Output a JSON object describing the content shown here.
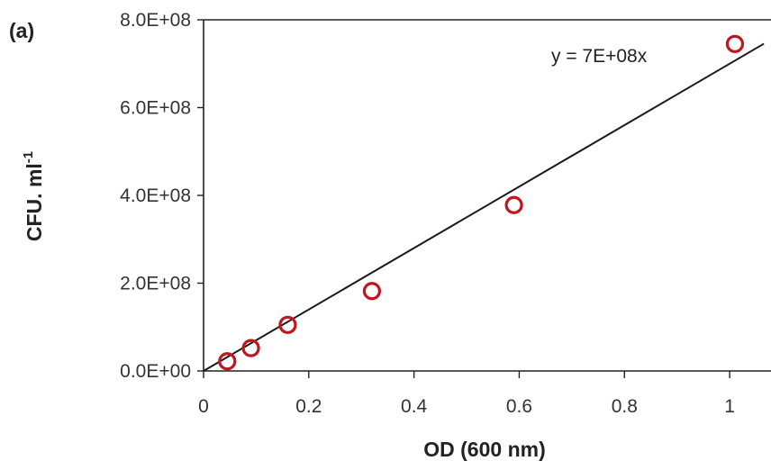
{
  "chart_data": {
    "type": "scatter",
    "panel_label": "(a)",
    "xlabel": "OD (600 nm)",
    "ylabel_main": "CFU. ml",
    "ylabel_sup": "-1",
    "xlim": [
      0,
      1.07
    ],
    "ylim": [
      0,
      800000000
    ],
    "grid": false,
    "x_ticks": [
      {
        "value": 0,
        "label": "0"
      },
      {
        "value": 0.2,
        "label": "0.2"
      },
      {
        "value": 0.4,
        "label": "0.4"
      },
      {
        "value": 0.6,
        "label": "0.6"
      },
      {
        "value": 0.8,
        "label": "0.8"
      },
      {
        "value": 1,
        "label": "1"
      }
    ],
    "y_ticks": [
      {
        "value": 0,
        "label": "0.0E+00"
      },
      {
        "value": 200000000,
        "label": "2.0E+08"
      },
      {
        "value": 400000000,
        "label": "4.0E+08"
      },
      {
        "value": 600000000,
        "label": "6.0E+08"
      },
      {
        "value": 800000000,
        "label": "8.0E+08"
      }
    ],
    "points": [
      {
        "x": 0.045,
        "y": 22000000
      },
      {
        "x": 0.09,
        "y": 52000000
      },
      {
        "x": 0.16,
        "y": 105000000
      },
      {
        "x": 0.32,
        "y": 182000000
      },
      {
        "x": 0.59,
        "y": 378000000
      },
      {
        "x": 1.01,
        "y": 745000000
      }
    ],
    "trendline": {
      "slope": 700000000,
      "intercept": 0,
      "equation": "y = 7E+08x"
    },
    "colors": {
      "marker": "#c0161e",
      "trendline": "#1a1a1a",
      "axis": "#222222"
    }
  }
}
